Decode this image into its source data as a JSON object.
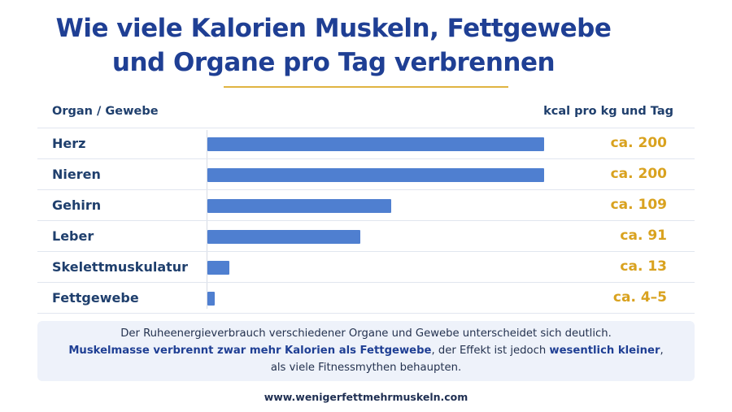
{
  "chart_data": {
    "type": "bar",
    "orientation": "horizontal",
    "title": "Wie viele Kalorien Muskeln, Fettgewebe und Organe pro Tag verbrennen",
    "title_lines": [
      "Wie viele Kalorien Muskeln, Fettgewebe",
      "und Organe pro Tag verbrennen"
    ],
    "column_header_left": "Organ / Gewebe",
    "column_header_right": "kcal pro kg und Tag",
    "categories": [
      "Herz",
      "Nieren",
      "Gehirn",
      "Leber",
      "Skelettmuskulatur",
      "Fettgewebe"
    ],
    "values": [
      200,
      200,
      109,
      91,
      13,
      4.5
    ],
    "value_labels": [
      "ca. 200",
      "ca. 200",
      "ca. 109",
      "ca. 91",
      "ca. 13",
      "ca. 4–5"
    ],
    "xlim": [
      0,
      200
    ],
    "grid": false,
    "colors": {
      "bar": "#4f7fd0",
      "value": "#d9a21f",
      "title": "#1f3f94",
      "accent_rule": "#e0b441"
    }
  },
  "note": {
    "line1": "Der Ruheenergieverbrauch verschiedener Organe und Gewebe unterscheidet sich deutlich.",
    "line2_bold_a": "Muskelmasse verbrennt zwar mehr Kalorien als Fettgewebe",
    "line2_plain": ", der Effekt ist jedoch ",
    "line2_bold_b": "wesentlich kleiner",
    "line2_end": ",",
    "line3": "als viele Fitnessmythen behaupten."
  },
  "footer": {
    "url": "www.wenigerfettmehrmuskeln.com"
  }
}
